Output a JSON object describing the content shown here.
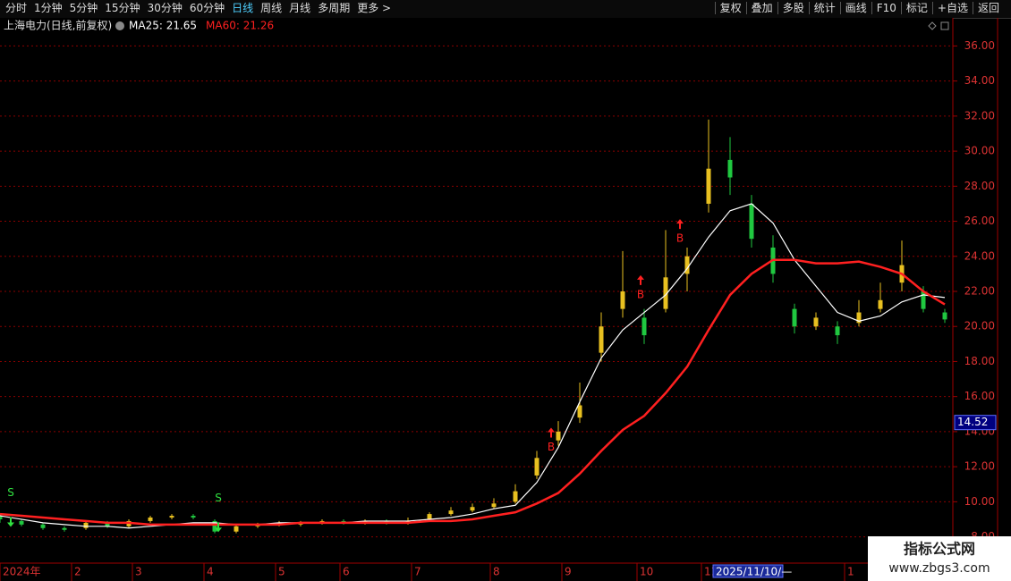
{
  "toolbar": {
    "left": [
      "分时",
      "1分钟",
      "5分钟",
      "15分钟",
      "30分钟",
      "60分钟",
      "日线",
      "周线",
      "月线",
      "多周期",
      "更多 >"
    ],
    "active": 6,
    "right": [
      "复权",
      "叠加",
      "多股",
      "统计",
      "画线",
      "F10",
      "标记",
      "+自选",
      "返回"
    ]
  },
  "chart_data": {
    "type": "candlestick",
    "title": "上海电力(日线,前复权)",
    "x": [
      0,
      6,
      12,
      18,
      24,
      30,
      36,
      42,
      48,
      54,
      60,
      66,
      72,
      78,
      84,
      90,
      96,
      102,
      108,
      114,
      120,
      126,
      132,
      138,
      144,
      150,
      156,
      162,
      168,
      174,
      180,
      186,
      192,
      198,
      204,
      210,
      216,
      222,
      228,
      234,
      240,
      246,
      252,
      258,
      264
    ],
    "candles": {
      "up_color": "#e8c020",
      "down_color": "#20c840",
      "open": [
        9.2,
        8.9,
        8.7,
        8.5,
        8.5,
        8.8,
        8.6,
        8.9,
        9.1,
        9.2,
        8.9,
        8.3,
        8.6,
        8.7,
        8.7,
        8.8,
        8.9,
        8.8,
        8.9,
        8.8,
        9.0,
        9.3,
        9.5,
        9.7,
        10.0,
        11.5,
        13.5,
        14.8,
        18.5,
        21.0,
        20.5,
        21.0,
        23.0,
        27.0,
        29.5,
        27.0,
        24.5,
        21.0,
        20.0,
        20.0,
        20.2,
        21.0,
        22.5,
        22.0,
        20.8
      ],
      "high": [
        9.3,
        9.0,
        8.8,
        8.6,
        8.9,
        8.9,
        9.0,
        9.2,
        9.3,
        9.3,
        9.0,
        8.7,
        8.8,
        8.9,
        8.9,
        9.0,
        9.0,
        9.0,
        9.0,
        9.1,
        9.4,
        9.7,
        9.9,
        10.2,
        11.0,
        12.9,
        14.6,
        16.8,
        20.8,
        24.3,
        21.0,
        25.5,
        24.5,
        31.8,
        30.8,
        27.5,
        25.2,
        21.3,
        20.8,
        20.3,
        21.5,
        22.5,
        24.9,
        22.3,
        21.0
      ],
      "low": [
        8.8,
        8.6,
        8.4,
        8.3,
        8.4,
        8.5,
        8.5,
        8.8,
        9.0,
        9.0,
        8.2,
        8.2,
        8.5,
        8.6,
        8.6,
        8.7,
        8.7,
        8.7,
        8.7,
        8.7,
        8.9,
        9.2,
        9.4,
        9.6,
        9.9,
        11.3,
        13.2,
        14.5,
        18.0,
        20.5,
        19.0,
        20.8,
        22.0,
        26.5,
        27.5,
        24.5,
        22.5,
        19.6,
        19.8,
        19.0,
        20.0,
        20.8,
        22.0,
        20.8,
        20.2
      ],
      "close": [
        9.0,
        8.7,
        8.5,
        8.4,
        8.8,
        8.6,
        8.9,
        9.1,
        9.2,
        9.1,
        8.3,
        8.6,
        8.7,
        8.8,
        8.8,
        8.9,
        8.8,
        8.9,
        8.8,
        8.9,
        9.3,
        9.5,
        9.7,
        9.9,
        10.6,
        12.5,
        14.0,
        15.5,
        20.0,
        22.0,
        19.5,
        22.8,
        24.0,
        29.0,
        28.5,
        25.0,
        23.0,
        20.0,
        20.5,
        19.5,
        20.8,
        21.5,
        23.5,
        21.0,
        20.4
      ]
    },
    "series": [
      {
        "name": "MA25: 21.65",
        "color": "#ffffff",
        "values": [
          9.2,
          9.0,
          8.8,
          8.7,
          8.6,
          8.6,
          8.5,
          8.6,
          8.7,
          8.8,
          8.8,
          8.7,
          8.7,
          8.8,
          8.8,
          8.8,
          8.8,
          8.9,
          8.9,
          8.9,
          9.0,
          9.1,
          9.3,
          9.6,
          9.8,
          11.1,
          13.1,
          15.7,
          18.2,
          19.8,
          20.8,
          21.8,
          23.3,
          25.1,
          26.6,
          27.0,
          25.9,
          23.8,
          22.3,
          20.8,
          20.3,
          20.6,
          21.4,
          21.8,
          21.65
        ]
      },
      {
        "name": "MA60: 21.26",
        "color": "#ff2020",
        "values": [
          9.3,
          9.2,
          9.1,
          9.0,
          8.9,
          8.8,
          8.8,
          8.7,
          8.7,
          8.7,
          8.7,
          8.7,
          8.7,
          8.7,
          8.8,
          8.8,
          8.8,
          8.8,
          8.8,
          8.8,
          8.9,
          8.9,
          9.0,
          9.2,
          9.4,
          9.9,
          10.5,
          11.6,
          12.9,
          14.1,
          14.9,
          16.2,
          17.7,
          19.8,
          21.8,
          23.0,
          23.8,
          23.8,
          23.6,
          23.6,
          23.7,
          23.4,
          23.0,
          22.0,
          21.26
        ]
      }
    ],
    "signals": [
      {
        "label": "S",
        "x": 3,
        "value": 10.5
      },
      {
        "label": "S",
        "x": 61,
        "value": 10.2
      },
      {
        "label": "B",
        "x": 154,
        "value": 13.1
      },
      {
        "label": "B",
        "x": 179,
        "value": 21.8
      },
      {
        "label": "B",
        "x": 190,
        "value": 25.0
      }
    ],
    "xlim": [
      0,
      266
    ],
    "xticks": [
      {
        "value": 0,
        "label": "2024年"
      },
      {
        "value": 20,
        "label": "2"
      },
      {
        "value": 37,
        "label": "3"
      },
      {
        "value": 57,
        "label": "4"
      },
      {
        "value": 77,
        "label": "5"
      },
      {
        "value": 95,
        "label": "6"
      },
      {
        "value": 115,
        "label": "7"
      },
      {
        "value": 137,
        "label": "8"
      },
      {
        "value": 157,
        "label": "9"
      },
      {
        "value": 178,
        "label": "10"
      },
      {
        "value": 196,
        "label": "11"
      },
      {
        "value": 236,
        "label": "1"
      }
    ],
    "ylim": [
      6.5,
      37.5
    ],
    "yticks": [
      {
        "value": 8,
        "label": "8.00"
      },
      {
        "value": 10,
        "label": "10.00"
      },
      {
        "value": 12,
        "label": "12.00"
      },
      {
        "value": 14,
        "label": "14.00"
      },
      {
        "value": 16,
        "label": "16.00"
      },
      {
        "value": 18,
        "label": "18.00"
      },
      {
        "value": 20,
        "label": "20.00"
      },
      {
        "value": 22,
        "label": "22.00"
      },
      {
        "value": 24,
        "label": "24.00"
      },
      {
        "value": 26,
        "label": "26.00"
      },
      {
        "value": 28,
        "label": "28.00"
      },
      {
        "value": 30,
        "label": "30.00"
      },
      {
        "value": 32,
        "label": "32.00"
      },
      {
        "value": 34,
        "label": "34.00"
      },
      {
        "value": 36,
        "label": "36.00"
      }
    ],
    "grid": true,
    "crosshair": {
      "x": 200,
      "x_label": "2025/11/10/—",
      "y_value": 14.52
    }
  },
  "watermark": {
    "title": "指标公式网",
    "url": "www.zbgs3.com"
  }
}
